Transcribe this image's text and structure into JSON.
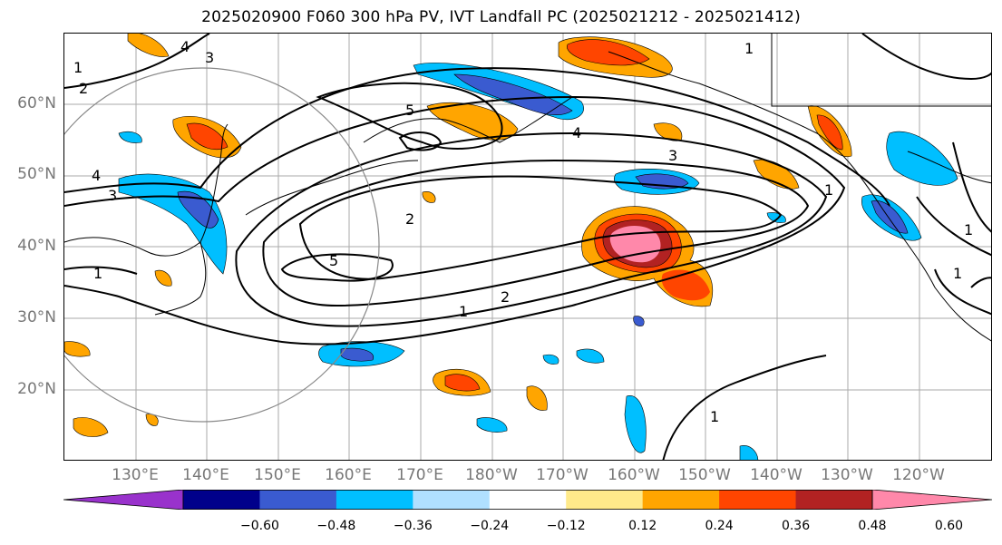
{
  "title": "2025020900 F060 300 hPa PV, IVT Landfall PC (2025021212 - 2025021412)",
  "lat_labels": [
    "60°N",
    "50°N",
    "40°N",
    "30°N",
    "20°N"
  ],
  "lon_labels": [
    "130°E",
    "140°E",
    "150°E",
    "160°E",
    "170°E",
    "180°W",
    "170°W",
    "160°W",
    "150°W",
    "140°W",
    "130°W",
    "120°W"
  ],
  "colorbar": {
    "colors": [
      "#9932CC",
      "#00008B",
      "#3A5BD0",
      "#00BFFF",
      "#B0E0FF",
      "#FFFFFF",
      "#FFEA8A",
      "#FFA500",
      "#FF4500",
      "#B22222",
      "#FF88AA"
    ],
    "tick_labels": [
      "−0.60",
      "−0.48",
      "−0.36",
      "−0.24",
      "−0.12",
      "0.12",
      "0.24",
      "0.36",
      "0.48",
      "0.60"
    ]
  },
  "contour_labels": [
    "4",
    "3",
    "2",
    "1",
    "5",
    "4",
    "3",
    "2",
    "1",
    "5",
    "1",
    "2",
    "1",
    "1",
    "1",
    "1",
    "4",
    "3",
    "1"
  ]
}
